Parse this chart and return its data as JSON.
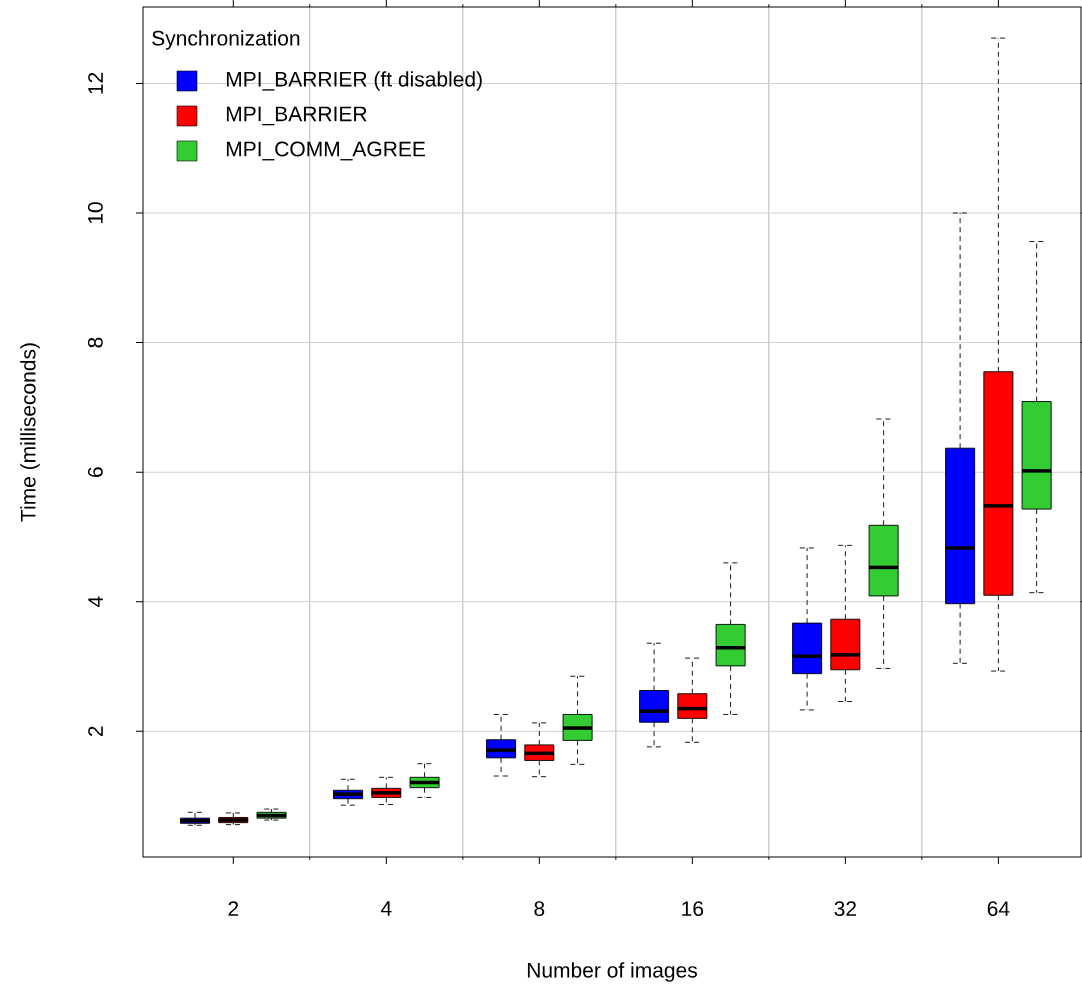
{
  "chart_data": {
    "type": "box",
    "xlabel": "Number of images",
    "ylabel": "Time (milliseconds)",
    "legend_title": "Synchronization",
    "legend": "top left",
    "grid": true,
    "categories": [
      "2",
      "4",
      "8",
      "16",
      "32",
      "64"
    ],
    "ylim": [
      0.06,
      13.18
    ],
    "yticks": [
      2,
      4,
      6,
      8,
      10,
      12
    ],
    "series": [
      {
        "name": "MPI_BARRIER (ft disabled)",
        "color": "#0000ff",
        "boxes": [
          {
            "low": 0.55,
            "q1": 0.58,
            "median": 0.62,
            "q3": 0.66,
            "high": 0.75
          },
          {
            "low": 0.86,
            "q1": 0.96,
            "median": 1.03,
            "q3": 1.09,
            "high": 1.26
          },
          {
            "low": 1.31,
            "q1": 1.59,
            "median": 1.71,
            "q3": 1.87,
            "high": 2.26
          },
          {
            "low": 1.76,
            "q1": 2.14,
            "median": 2.31,
            "q3": 2.63,
            "high": 3.36
          },
          {
            "low": 2.33,
            "q1": 2.89,
            "median": 3.16,
            "q3": 3.67,
            "high": 4.83
          },
          {
            "low": 3.05,
            "q1": 3.97,
            "median": 4.83,
            "q3": 6.37,
            "high": 10.0
          }
        ]
      },
      {
        "name": "MPI_BARRIER",
        "color": "#ff0000",
        "boxes": [
          {
            "low": 0.56,
            "q1": 0.59,
            "median": 0.63,
            "q3": 0.67,
            "high": 0.74
          },
          {
            "low": 0.87,
            "q1": 0.98,
            "median": 1.05,
            "q3": 1.12,
            "high": 1.29
          },
          {
            "low": 1.3,
            "q1": 1.55,
            "median": 1.66,
            "q3": 1.79,
            "high": 2.13
          },
          {
            "low": 1.83,
            "q1": 2.2,
            "median": 2.35,
            "q3": 2.58,
            "high": 3.13
          },
          {
            "low": 2.46,
            "q1": 2.95,
            "median": 3.18,
            "q3": 3.73,
            "high": 4.87
          },
          {
            "low": 2.93,
            "q1": 4.1,
            "median": 5.48,
            "q3": 7.55,
            "high": 12.7
          }
        ]
      },
      {
        "name": "MPI_COMM_AGREE",
        "color": "#33cc33",
        "boxes": [
          {
            "low": 0.63,
            "q1": 0.66,
            "median": 0.7,
            "q3": 0.75,
            "high": 0.8
          },
          {
            "low": 0.98,
            "q1": 1.13,
            "median": 1.21,
            "q3": 1.29,
            "high": 1.5
          },
          {
            "low": 1.49,
            "q1": 1.86,
            "median": 2.05,
            "q3": 2.26,
            "high": 2.85
          },
          {
            "low": 2.26,
            "q1": 3.01,
            "median": 3.29,
            "q3": 3.65,
            "high": 4.6
          },
          {
            "low": 2.97,
            "q1": 4.09,
            "median": 4.53,
            "q3": 5.18,
            "high": 6.82
          },
          {
            "low": 4.14,
            "q1": 5.43,
            "median": 6.02,
            "q3": 7.09,
            "high": 9.56
          }
        ]
      }
    ]
  }
}
